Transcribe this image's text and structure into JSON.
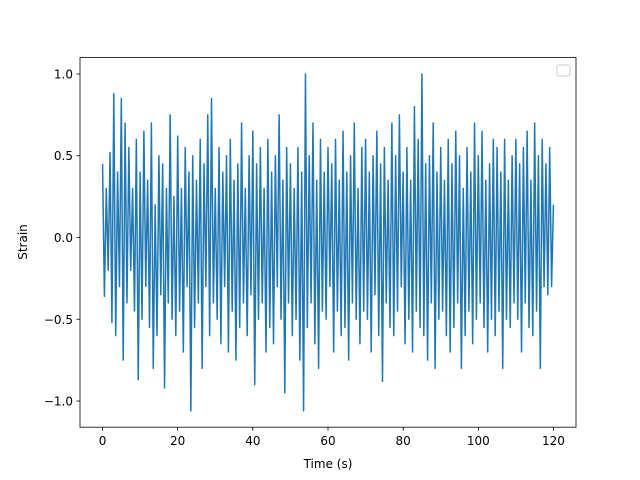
{
  "chart_data": {
    "type": "line",
    "xlabel": "Time (s)",
    "ylabel": "Strain",
    "x": [
      0,
      0.5,
      1,
      1.5,
      2,
      2.5,
      3,
      3.5,
      4,
      4.5,
      5,
      5.5,
      6,
      6.5,
      7,
      7.5,
      8,
      8.5,
      9,
      9.5,
      10,
      10.5,
      11,
      11.5,
      12,
      12.5,
      13,
      13.5,
      14,
      14.5,
      15,
      15.5,
      16,
      16.5,
      17,
      17.5,
      18,
      18.5,
      19,
      19.5,
      20,
      20.5,
      21,
      21.5,
      22,
      22.5,
      23,
      23.5,
      24,
      24.5,
      25,
      25.5,
      26,
      26.5,
      27,
      27.5,
      28,
      28.5,
      29,
      29.5,
      30,
      30.5,
      31,
      31.5,
      32,
      32.5,
      33,
      33.5,
      34,
      34.5,
      35,
      35.5,
      36,
      36.5,
      37,
      37.5,
      38,
      38.5,
      39,
      39.5,
      40,
      40.5,
      41,
      41.5,
      42,
      42.5,
      43,
      43.5,
      44,
      44.5,
      45,
      45.5,
      46,
      46.5,
      47,
      47.5,
      48,
      48.5,
      49,
      49.5,
      50,
      50.5,
      51,
      51.5,
      52,
      52.5,
      53,
      53.5,
      54,
      54.5,
      55,
      55.5,
      56,
      56.5,
      57,
      57.5,
      58,
      58.5,
      59,
      59.5,
      60,
      60.5,
      61,
      61.5,
      62,
      62.5,
      63,
      63.5,
      64,
      64.5,
      65,
      65.5,
      66,
      66.5,
      67,
      67.5,
      68,
      68.5,
      69,
      69.5,
      70,
      70.5,
      71,
      71.5,
      72,
      72.5,
      73,
      73.5,
      74,
      74.5,
      75,
      75.5,
      76,
      76.5,
      77,
      77.5,
      78,
      78.5,
      79,
      79.5,
      80,
      80.5,
      81,
      81.5,
      82,
      82.5,
      83,
      83.5,
      84,
      84.5,
      85,
      85.5,
      86,
      86.5,
      87,
      87.5,
      88,
      88.5,
      89,
      89.5,
      90,
      90.5,
      91,
      91.5,
      92,
      92.5,
      93,
      93.5,
      94,
      94.5,
      95,
      95.5,
      96,
      96.5,
      97,
      97.5,
      98,
      98.5,
      99,
      99.5,
      100,
      100.5,
      101,
      101.5,
      102,
      102.5,
      103,
      103.5,
      104,
      104.5,
      105,
      105.5,
      106,
      106.5,
      107,
      107.5,
      108,
      108.5,
      109,
      109.5,
      110,
      110.5,
      111,
      111.5,
      112,
      112.5,
      113,
      113.5,
      114,
      114.5,
      115,
      115.5,
      116,
      116.5,
      117,
      117.5,
      118,
      118.5,
      119,
      119.5,
      120
    ],
    "series": [
      {
        "color": "#1f77b4",
        "values": [
          0.45,
          -0.36,
          0.3,
          -0.2,
          0.52,
          -0.52,
          0.88,
          -0.6,
          0.4,
          -0.3,
          0.85,
          -0.75,
          0.7,
          -0.4,
          0.55,
          -0.2,
          0.3,
          -0.45,
          0.6,
          -0.87,
          0.4,
          -0.5,
          0.65,
          -0.3,
          0.35,
          -0.55,
          0.7,
          -0.8,
          0.2,
          -0.6,
          0.5,
          -0.35,
          0.45,
          -0.92,
          0.3,
          -0.4,
          0.75,
          -0.5,
          0.25,
          -0.6,
          0.62,
          -0.45,
          0.3,
          -0.7,
          0.55,
          -0.3,
          0.4,
          -1.06,
          0.5,
          -0.55,
          0.35,
          -0.4,
          0.6,
          -0.8,
          0.45,
          -0.3,
          0.75,
          -0.6,
          0.85,
          -0.4,
          0.3,
          -0.5,
          0.55,
          -0.65,
          0.4,
          -0.3,
          0.5,
          -0.7,
          0.6,
          -0.45,
          0.35,
          -0.75,
          0.45,
          -0.55,
          0.7,
          -0.4,
          0.3,
          -0.6,
          0.5,
          -0.35,
          0.65,
          -0.9,
          0.45,
          -0.5,
          0.55,
          -0.4,
          0.3,
          -0.7,
          0.6,
          -0.55,
          0.4,
          -0.65,
          0.5,
          -0.3,
          0.75,
          -0.5,
          0.35,
          -0.95,
          0.55,
          -0.4,
          0.45,
          -0.6,
          0.3,
          -0.5,
          0.55,
          -0.75,
          0.4,
          -1.06,
          1.0,
          -0.55,
          0.5,
          -0.4,
          0.7,
          -0.65,
          0.35,
          -0.8,
          0.6,
          -0.45,
          0.4,
          -0.5,
          0.55,
          -0.3,
          0.45,
          -0.7,
          0.6,
          -0.45,
          0.35,
          -0.6,
          0.65,
          -0.55,
          0.4,
          -0.75,
          0.5,
          -0.4,
          0.7,
          -0.5,
          0.3,
          -0.65,
          0.55,
          -0.45,
          0.6,
          -0.5,
          0.4,
          -0.7,
          0.5,
          -0.35,
          0.65,
          -0.6,
          0.45,
          -0.88,
          0.55,
          -0.4,
          0.35,
          -0.55,
          0.7,
          -0.6,
          0.5,
          -0.45,
          0.75,
          -0.3,
          0.4,
          -0.65,
          0.55,
          -0.5,
          0.35,
          -0.7,
          0.8,
          -0.45,
          0.6,
          -0.55,
          1.0,
          -0.6,
          0.45,
          -0.75,
          0.5,
          -0.4,
          0.7,
          -0.8,
          0.4,
          -0.5,
          0.55,
          -0.45,
          0.35,
          -0.6,
          0.6,
          -0.7,
          0.45,
          -0.55,
          0.65,
          -0.4,
          0.5,
          -0.8,
          0.3,
          -0.6,
          0.55,
          -0.45,
          0.4,
          -0.65,
          0.7,
          -0.5,
          0.5,
          -0.4,
          0.65,
          -0.55,
          0.35,
          -0.7,
          0.45,
          -0.5,
          0.6,
          -0.6,
          0.55,
          -0.45,
          0.4,
          -0.8,
          0.6,
          -0.5,
          0.35,
          -0.55,
          0.5,
          -0.4,
          0.6,
          -0.5,
          0.45,
          -0.7,
          0.55,
          -0.4,
          0.65,
          -0.55,
          0.35,
          -0.6,
          0.7,
          -0.45,
          0.5,
          -0.8,
          0.6,
          -0.3,
          0.45,
          -0.35,
          0.55,
          -0.3,
          0.2
        ]
      }
    ],
    "xlim": [
      -6,
      126
    ],
    "xticks": [
      0,
      20,
      40,
      60,
      80,
      100,
      120
    ],
    "ylim": [
      -1.16,
      1.1
    ],
    "yticks": [
      {
        "value": -1.0,
        "label": "−1.0"
      },
      {
        "value": -0.5,
        "label": "−0.5"
      },
      {
        "value": 0.0,
        "label": "0.0"
      },
      {
        "value": 0.5,
        "label": "0.5"
      },
      {
        "value": 1.0,
        "label": "1.0"
      }
    ],
    "grid": false
  }
}
